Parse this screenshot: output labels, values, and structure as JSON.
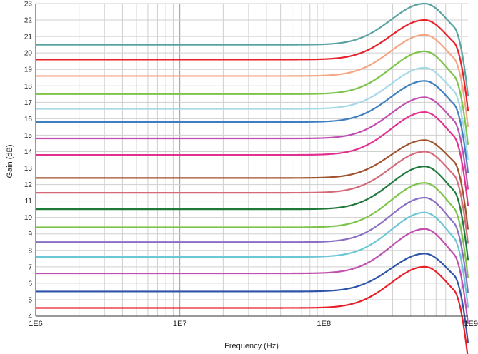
{
  "chart_data": {
    "type": "line",
    "xlabel": "Frequency (Hz)",
    "ylabel": "Gain (dB)",
    "x_scale": "log",
    "xlim": [
      1000000,
      1000000000
    ],
    "ylim": [
      4,
      23
    ],
    "grid": true,
    "x_ticks": [
      "1E6",
      "1E7",
      "1E8",
      "1E9"
    ],
    "y_ticks": [
      "4",
      "5",
      "6",
      "7",
      "8",
      "9",
      "10",
      "11",
      "12",
      "13",
      "14",
      "15",
      "16",
      "17",
      "18",
      "19",
      "20",
      "21",
      "22",
      "23"
    ],
    "peak_frequency": 500000000,
    "series": [
      {
        "color": "#5ba3a3",
        "flat_gain": 20.5,
        "peak_gain": 23.0
      },
      {
        "color": "#e8202a",
        "flat_gain": 19.6,
        "peak_gain": 22.0
      },
      {
        "color": "#f4a582",
        "flat_gain": 18.6,
        "peak_gain": 21.1
      },
      {
        "color": "#7cc34a",
        "flat_gain": 17.5,
        "peak_gain": 20.1
      },
      {
        "color": "#a6d8e8",
        "flat_gain": 16.6,
        "peak_gain": 19.1
      },
      {
        "color": "#3f7fc0",
        "flat_gain": 15.8,
        "peak_gain": 18.3
      },
      {
        "color": "#c04fb0",
        "flat_gain": 14.8,
        "peak_gain": 17.3
      },
      {
        "color": "#e2308f",
        "flat_gain": 13.8,
        "peak_gain": 16.4
      },
      {
        "color": "#a0522d",
        "flat_gain": 12.4,
        "peak_gain": 14.7
      },
      {
        "color": "#d46a78",
        "flat_gain": 11.5,
        "peak_gain": 14.0
      },
      {
        "color": "#1f7a3a",
        "flat_gain": 10.5,
        "peak_gain": 13.1
      },
      {
        "color": "#7cc34a",
        "flat_gain": 9.4,
        "peak_gain": 12.1
      },
      {
        "color": "#8a6fc4",
        "flat_gain": 8.5,
        "peak_gain": 11.2
      },
      {
        "color": "#6cc6d6",
        "flat_gain": 7.6,
        "peak_gain": 10.3
      },
      {
        "color": "#c04fb0",
        "flat_gain": 6.6,
        "peak_gain": 9.3
      },
      {
        "color": "#2e55a8",
        "flat_gain": 5.5,
        "peak_gain": 7.8
      },
      {
        "color": "#e8202a",
        "flat_gain": 4.5,
        "peak_gain": 7.0
      }
    ]
  }
}
